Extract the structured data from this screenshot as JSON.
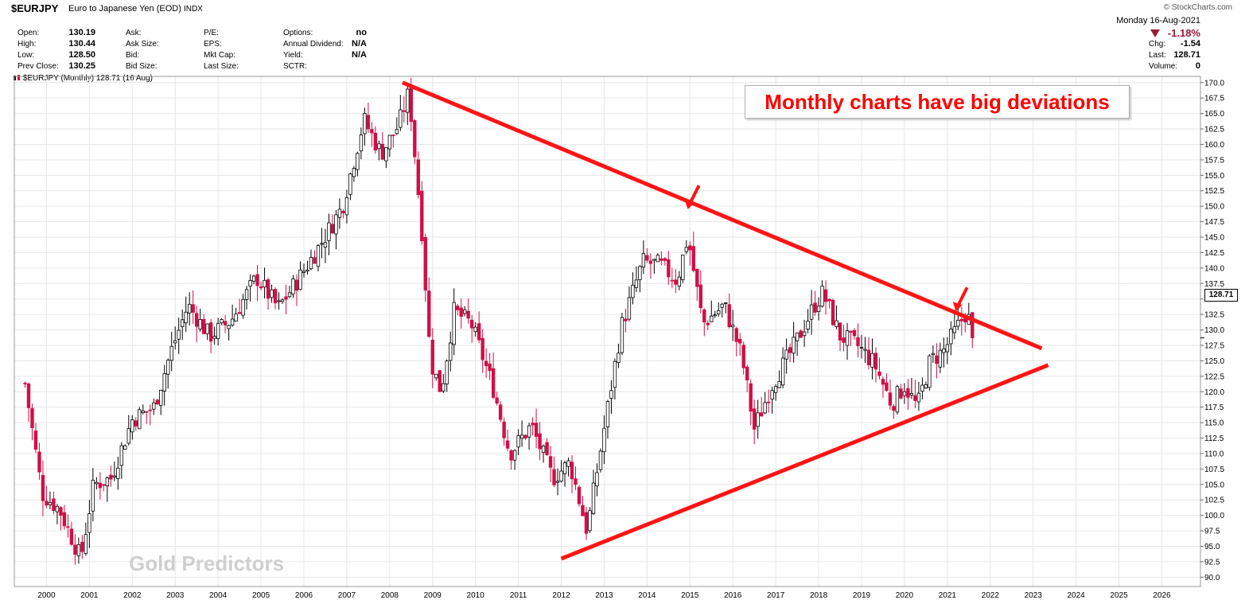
{
  "header": {
    "symbol": "$EURJPY",
    "name": "Euro to Japanese Yen (EOD)",
    "exchange": "INDX",
    "credit": "© StockCharts.com",
    "quote_rows": [
      [
        {
          "label": "Open:",
          "value": "130.19"
        },
        {
          "label": "Ask:",
          "value": ""
        },
        {
          "label": "P/E:",
          "value": ""
        },
        {
          "label": "Options:",
          "value": "no"
        }
      ],
      [
        {
          "label": "High:",
          "value": "130.44"
        },
        {
          "label": "Ask Size:",
          "value": ""
        },
        {
          "label": "EPS:",
          "value": ""
        },
        {
          "label": "Annual Dividend:",
          "value": "N/A"
        }
      ],
      [
        {
          "label": "Low:",
          "value": "128.50"
        },
        {
          "label": "Bid:",
          "value": ""
        },
        {
          "label": "Mkt Cap:",
          "value": ""
        },
        {
          "label": "Yield:",
          "value": "N/A"
        }
      ],
      [
        {
          "label": "Prev Close:",
          "value": "130.25"
        },
        {
          "label": "Bid Size:",
          "value": ""
        },
        {
          "label": "Last Size:",
          "value": ""
        },
        {
          "label": "SCTR:",
          "value": ""
        }
      ]
    ],
    "date": "Monday  16-Aug-2021",
    "pct_change": "-1.18%",
    "summary": [
      {
        "label": "Chg:",
        "value": "-1.54"
      },
      {
        "label": "Last:",
        "value": "128.71"
      },
      {
        "label": "Volume:",
        "value": "0"
      }
    ],
    "legend": "$EURJPY (Monthly) 128.71 (16 Aug)"
  },
  "annotation_text": "Monthly charts have big deviations",
  "watermark": "Gold Predictors",
  "last_price_label": "128.71",
  "colors": {
    "up": "#000000",
    "down": "#d10f47",
    "trendline": "#ff1414",
    "grid": "#e6e6e6"
  },
  "chart_data": {
    "type": "candlestick",
    "interval": "monthly",
    "ylim": [
      88.5,
      171.0
    ],
    "y_ticks": [
      "90.0",
      "92.5",
      "95.0",
      "97.5",
      "100.0",
      "102.5",
      "105.0",
      "107.5",
      "110.0",
      "112.5",
      "115.0",
      "117.5",
      "120.0",
      "122.5",
      "125.0",
      "127.5",
      "130.0",
      "132.5",
      "135.0",
      "137.5",
      "140.0",
      "142.5",
      "145.0",
      "147.5",
      "150.0",
      "152.5",
      "155.0",
      "157.5",
      "160.0",
      "162.5",
      "165.0",
      "167.5",
      "170.0"
    ],
    "x_ticks": [
      "2000",
      "2001",
      "2002",
      "2003",
      "2004",
      "2005",
      "2006",
      "2007",
      "2008",
      "2009",
      "2010",
      "2011",
      "2012",
      "2013",
      "2014",
      "2015",
      "2016",
      "2017",
      "2018",
      "2019",
      "2020",
      "2021",
      "2022",
      "2023",
      "2024",
      "2025",
      "2026"
    ],
    "xlim": [
      1999.25,
      2026.9
    ],
    "closes": [
      {
        "t": 1999.5,
        "v": 121.3
      },
      {
        "t": 1999.9,
        "v": 103.5
      },
      {
        "t": 2000.3,
        "v": 101.0
      },
      {
        "t": 2000.8,
        "v": 93.0
      },
      {
        "t": 2001.1,
        "v": 105.0
      },
      {
        "t": 2001.5,
        "v": 106.0
      },
      {
        "t": 2002.0,
        "v": 115.5
      },
      {
        "t": 2002.5,
        "v": 117.5
      },
      {
        "t": 2002.9,
        "v": 126.5
      },
      {
        "t": 2003.3,
        "v": 134.0
      },
      {
        "t": 2003.8,
        "v": 129.0
      },
      {
        "t": 2004.3,
        "v": 131.5
      },
      {
        "t": 2004.9,
        "v": 138.5
      },
      {
        "t": 2005.4,
        "v": 133.5
      },
      {
        "t": 2005.9,
        "v": 138.5
      },
      {
        "t": 2006.4,
        "v": 144.0
      },
      {
        "t": 2006.9,
        "v": 150.0
      },
      {
        "t": 2007.4,
        "v": 164.0
      },
      {
        "t": 2007.8,
        "v": 158.5
      },
      {
        "t": 2008.2,
        "v": 163.0
      },
      {
        "t": 2008.45,
        "v": 168.5
      },
      {
        "t": 2008.75,
        "v": 146.0
      },
      {
        "t": 2008.95,
        "v": 125.0
      },
      {
        "t": 2009.2,
        "v": 120.0
      },
      {
        "t": 2009.5,
        "v": 133.0
      },
      {
        "t": 2009.9,
        "v": 131.0
      },
      {
        "t": 2010.4,
        "v": 121.0
      },
      {
        "t": 2010.8,
        "v": 110.0
      },
      {
        "t": 2011.3,
        "v": 114.5
      },
      {
        "t": 2011.8,
        "v": 106.0
      },
      {
        "t": 2012.2,
        "v": 108.5
      },
      {
        "t": 2012.6,
        "v": 97.5
      },
      {
        "t": 2012.95,
        "v": 112.0
      },
      {
        "t": 2013.4,
        "v": 130.5
      },
      {
        "t": 2013.9,
        "v": 141.0
      },
      {
        "t": 2014.3,
        "v": 140.5
      },
      {
        "t": 2014.7,
        "v": 138.0
      },
      {
        "t": 2014.95,
        "v": 145.0
      },
      {
        "t": 2015.3,
        "v": 131.0
      },
      {
        "t": 2015.8,
        "v": 134.0
      },
      {
        "t": 2016.2,
        "v": 126.0
      },
      {
        "t": 2016.5,
        "v": 114.0
      },
      {
        "t": 2016.9,
        "v": 121.0
      },
      {
        "t": 2017.4,
        "v": 127.0
      },
      {
        "t": 2017.9,
        "v": 134.0
      },
      {
        "t": 2018.1,
        "v": 136.0
      },
      {
        "t": 2018.5,
        "v": 129.0
      },
      {
        "t": 2018.9,
        "v": 127.5
      },
      {
        "t": 2019.3,
        "v": 124.5
      },
      {
        "t": 2019.7,
        "v": 118.0
      },
      {
        "t": 2020.0,
        "v": 121.0
      },
      {
        "t": 2020.3,
        "v": 117.5
      },
      {
        "t": 2020.6,
        "v": 125.0
      },
      {
        "t": 2020.9,
        "v": 126.5
      },
      {
        "t": 2021.2,
        "v": 130.0
      },
      {
        "t": 2021.45,
        "v": 133.0
      },
      {
        "t": 2021.62,
        "v": 128.71
      }
    ],
    "last": 128.71,
    "trendlines": [
      {
        "name": "resistance",
        "from": {
          "t": 2008.3,
          "v": 170.0
        },
        "to": {
          "t": 2023.2,
          "v": 127.0
        }
      },
      {
        "name": "support",
        "from": {
          "t": 2012.0,
          "v": 93.0
        },
        "to": {
          "t": 2023.35,
          "v": 124.3
        }
      }
    ],
    "arrows": [
      {
        "t": 2014.95,
        "v": 149.5
      },
      {
        "t": 2021.2,
        "v": 133.0
      }
    ]
  }
}
